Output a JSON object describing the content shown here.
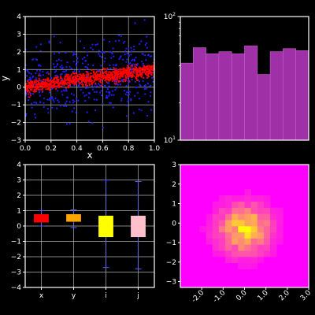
{
  "colors": {
    "background": "#000000",
    "axes_face": "#000000",
    "spine": "#ffffff",
    "grid": "#b0b0b0",
    "scatter_blue": "#1f1fff",
    "scatter_red": "#ff0000",
    "hist_bar": "#a030a8",
    "box_colors": [
      "#ff0000",
      "#ffa500",
      "#ffff00",
      "#ffc0cb"
    ],
    "whisker": "#5a5aff"
  },
  "chart_data": [
    {
      "id": "scatter",
      "type": "scatter",
      "xlabel": "x",
      "ylabel": "y",
      "xlim": [
        0,
        1
      ],
      "ylim": [
        -3,
        4
      ],
      "xticks": [
        0.0,
        0.2,
        0.4,
        0.6,
        0.8,
        1.0
      ],
      "xticklabels": [
        "0.0",
        "0.2",
        "0.4",
        "0.6",
        "0.8",
        "1.0"
      ],
      "yticks": [
        -3,
        -2,
        -1,
        0,
        1,
        2,
        3,
        4
      ],
      "yticklabels": [
        "−3",
        "−2",
        "−1",
        "0",
        "1",
        "2",
        "3",
        "4"
      ],
      "grid": true,
      "series": [
        {
          "color": "blue",
          "marker": "dot",
          "trend": [
            0.0,
            1.0
          ],
          "spread": 1.0,
          "n": 500
        },
        {
          "color": "red",
          "marker": "dot",
          "trend": [
            0.0,
            1.0
          ],
          "spread": 0.18,
          "n": 1000
        }
      ]
    },
    {
      "id": "histogram",
      "type": "bar",
      "yscale": "log",
      "ylim": [
        10,
        100
      ],
      "yticklabels": [
        {
          "base": "10",
          "exp": "2",
          "value": 100
        },
        {
          "base": "10",
          "exp": "1",
          "value": 10
        }
      ],
      "values": [
        42,
        56,
        50,
        52,
        50,
        58,
        34,
        52,
        55,
        53
      ],
      "grid": false
    },
    {
      "id": "boxplot",
      "type": "box",
      "ylim": [
        -4,
        4
      ],
      "yticks": [
        -4,
        -3,
        -2,
        -1,
        0,
        1,
        2,
        3,
        4
      ],
      "yticklabels": [
        "−4",
        "−3",
        "−2",
        "−1",
        "0",
        "1",
        "2",
        "3",
        "4"
      ],
      "categories": [
        "x",
        "y",
        "i",
        "j"
      ],
      "boxes": [
        {
          "whislo": 0.0,
          "q1": 0.25,
          "med": 0.5,
          "q3": 0.75,
          "whishi": 1.0
        },
        {
          "whislo": -0.1,
          "q1": 0.3,
          "med": 0.5,
          "q3": 0.75,
          "whishi": 1.05
        },
        {
          "whislo": -2.7,
          "q1": -0.7,
          "med": 0.0,
          "q3": 0.65,
          "whishi": 3.0
        },
        {
          "whislo": -2.8,
          "q1": -0.7,
          "med": 0.0,
          "q3": 0.65,
          "whishi": 2.9
        }
      ],
      "grid": true
    },
    {
      "id": "hist2d",
      "type": "heatmap",
      "xlim": [
        -3,
        3
      ],
      "ylim": [
        -3.3,
        3
      ],
      "xticks": [
        -2,
        -1,
        0,
        1,
        2,
        3
      ],
      "xticklabels": [
        "-2.0",
        "-1.0",
        "0.0",
        "1.0",
        "2.0",
        "3.0"
      ],
      "yticks": [
        -3,
        -2,
        -1,
        0,
        1,
        2,
        3
      ],
      "yticklabels": [
        "−3",
        "−2",
        "−1",
        "0",
        "1",
        "2",
        "3"
      ],
      "bins": 20,
      "peak": [
        0.0,
        -0.3
      ],
      "colormap": "spring"
    }
  ]
}
